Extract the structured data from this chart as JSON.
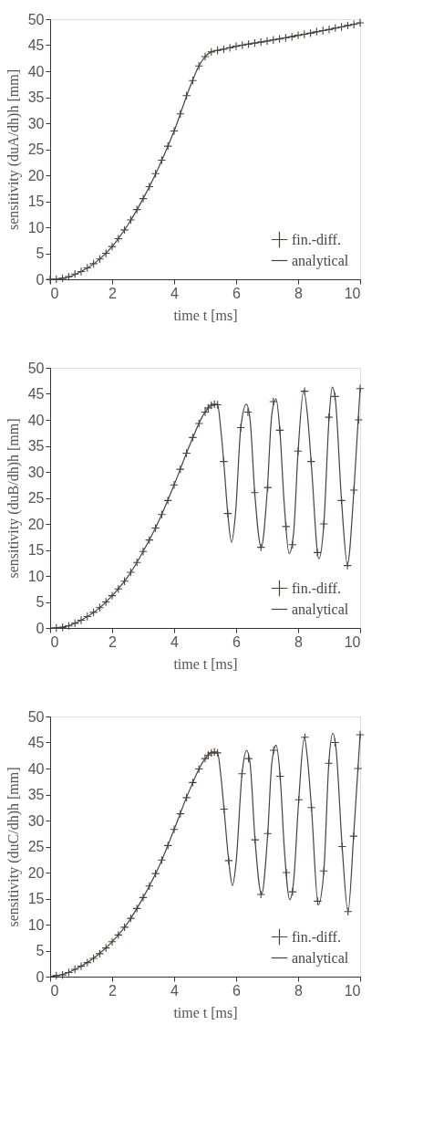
{
  "chart_data": [
    {
      "type": "line",
      "xlabel": "time t [ms]",
      "ylabel": "sensitivity (duA/dh)h [mm]",
      "xlim": [
        0,
        10
      ],
      "ylim": [
        0,
        50
      ],
      "xticks": [
        0,
        2,
        4,
        6,
        8,
        10
      ],
      "yticks": [
        0,
        5,
        10,
        15,
        20,
        25,
        30,
        35,
        40,
        45,
        50
      ],
      "legend": "bottom right",
      "series": [
        {
          "name": "fin.-diff.",
          "type": "scatter",
          "marker": "cross",
          "color": "#4a4040",
          "x": [
            0,
            0.2,
            0.4,
            0.6,
            0.8,
            1,
            1.2,
            1.4,
            1.6,
            1.8,
            2,
            2.2,
            2.4,
            2.6,
            2.8,
            3,
            3.2,
            3.4,
            3.6,
            3.8,
            4,
            4.2,
            4.4,
            4.6,
            4.8,
            5,
            5.2,
            5.4,
            5.6,
            5.8,
            6,
            6.2,
            6.4,
            6.6,
            6.8,
            7,
            7.2,
            7.4,
            7.6,
            7.8,
            8,
            8.2,
            8.4,
            8.6,
            8.8,
            9,
            9.2,
            9.4,
            9.6,
            9.8,
            10
          ],
          "values": [
            0,
            0,
            0.2,
            0.5,
            1,
            1.5,
            2.2,
            3,
            3.9,
            5,
            6.3,
            7.8,
            9.5,
            11.4,
            13.4,
            15.5,
            17.8,
            20.3,
            22.9,
            25.6,
            28.5,
            31.8,
            35.3,
            38.2,
            41,
            42.8,
            43.7,
            44,
            44.2,
            44.5,
            44.8,
            45,
            45.2,
            45.4,
            45.6,
            45.8,
            46,
            46.2,
            46.4,
            46.6,
            46.9,
            47.1,
            47.3,
            47.6,
            47.8,
            48,
            48.3,
            48.5,
            48.8,
            49,
            49.3
          ]
        },
        {
          "name": "analytical",
          "line_style": "solid",
          "color": "#4a4040",
          "x": [
            0,
            0.5,
            1,
            1.5,
            2,
            2.5,
            3,
            3.5,
            4,
            4.5,
            4.8,
            5,
            5.2,
            5.4,
            6,
            7,
            8,
            9,
            10
          ],
          "values": [
            0,
            0.3,
            1.5,
            3.4,
            6.3,
            10.4,
            15.5,
            21.5,
            28.5,
            36.8,
            41,
            42.8,
            43.7,
            44,
            44.8,
            45.8,
            46.9,
            48,
            49.3
          ]
        }
      ]
    },
    {
      "type": "line",
      "xlabel": "time t [ms]",
      "ylabel": "sensitivity (duB/dh)h [mm]",
      "xlim": [
        0,
        10
      ],
      "ylim": [
        0,
        50
      ],
      "xticks": [
        0,
        2,
        4,
        6,
        8,
        10
      ],
      "yticks": [
        0,
        5,
        10,
        15,
        20,
        25,
        30,
        35,
        40,
        45,
        50
      ],
      "legend": "bottom right",
      "series": [
        {
          "name": "fin.-diff.",
          "type": "scatter",
          "marker": "cross",
          "color": "#4a4040",
          "x": [
            0.2,
            0.4,
            0.6,
            0.8,
            1,
            1.2,
            1.4,
            1.6,
            1.8,
            2,
            2.2,
            2.4,
            2.6,
            2.8,
            3,
            3.2,
            3.4,
            3.6,
            3.8,
            4,
            4.2,
            4.4,
            4.6,
            4.8,
            5,
            5.1,
            5.2,
            5.3,
            5.4,
            5.6,
            5.73,
            6.15,
            6.38,
            6.6,
            6.8,
            7.02,
            7.2,
            7.41,
            7.61,
            7.82,
            8.0,
            8.21,
            8.42,
            8.62,
            8.83,
            8.99,
            9.19,
            9.4,
            9.59,
            9.8,
            9.95,
            10
          ],
          "values": [
            0,
            0.1,
            0.4,
            0.9,
            1.5,
            2.2,
            3,
            3.9,
            5,
            6.2,
            7.5,
            9,
            10.7,
            12.6,
            14.7,
            16.9,
            19.2,
            21.8,
            24.5,
            27.5,
            30.5,
            33.6,
            36.6,
            39.3,
            41.5,
            42.3,
            42.8,
            43,
            42.9,
            32,
            22,
            38.5,
            41.5,
            26,
            15.5,
            27,
            43.5,
            38,
            19.5,
            16,
            34,
            45.5,
            32,
            14.5,
            20,
            40.5,
            44.5,
            24.5,
            12,
            26.5,
            40,
            46
          ]
        },
        {
          "name": "analytical",
          "line_style": "solid",
          "color": "#4a4040",
          "x": [
            0,
            0.5,
            1,
            1.5,
            2,
            2.5,
            3,
            3.5,
            4,
            4.5,
            5,
            5.2,
            5.4,
            5.5,
            5.6,
            5.73,
            5.85,
            5.98,
            6.15,
            6.33,
            6.45,
            6.6,
            6.81,
            7.0,
            7.15,
            7.29,
            7.41,
            7.55,
            7.71,
            7.85,
            8.0,
            8.18,
            8.3,
            8.42,
            8.67,
            8.83,
            9.0,
            9.1,
            9.2,
            9.4,
            9.59,
            9.8,
            10
          ],
          "values": [
            0,
            0.3,
            1.5,
            3.4,
            6.2,
            9.8,
            14.7,
            20.5,
            27.5,
            35.1,
            41.5,
            42.8,
            42.9,
            38.5,
            32,
            22,
            16.5,
            22,
            38.5,
            43,
            40,
            26,
            15.5,
            26,
            41,
            44,
            38,
            24,
            14.3,
            18,
            34,
            45.7,
            41,
            32,
            13.3,
            20,
            40.5,
            46.3,
            44,
            24.5,
            12.2,
            26.5,
            46
          ]
        }
      ]
    },
    {
      "type": "line",
      "xlabel": "time t [ms]",
      "ylabel": "sensitivity (duC/dh)h [mm]",
      "xlim": [
        0,
        10
      ],
      "ylim": [
        0,
        50
      ],
      "xticks": [
        0,
        2,
        4,
        6,
        8,
        10
      ],
      "yticks": [
        0,
        5,
        10,
        15,
        20,
        25,
        30,
        35,
        40,
        45,
        50
      ],
      "legend": "bottom right",
      "series": [
        {
          "name": "fin.-diff.",
          "type": "scatter",
          "marker": "cross",
          "color": "#4a4040",
          "x": [
            0.2,
            0.4,
            0.6,
            0.8,
            1,
            1.2,
            1.4,
            1.6,
            1.8,
            2,
            2.2,
            2.4,
            2.6,
            2.8,
            3,
            3.2,
            3.4,
            3.6,
            3.8,
            4,
            4.2,
            4.4,
            4.6,
            4.8,
            5,
            5.1,
            5.2,
            5.3,
            5.4,
            5.61,
            5.76,
            6.19,
            6.4,
            6.61,
            6.8,
            7.02,
            7.21,
            7.42,
            7.62,
            7.82,
            8.02,
            8.22,
            8.43,
            8.63,
            8.83,
            8.99,
            9.19,
            9.42,
            9.61,
            9.79,
            9.93,
            10
          ],
          "values": [
            0.2,
            0.3,
            0.8,
            1.4,
            2,
            2.7,
            3.5,
            4.4,
            5.5,
            6.7,
            8,
            9.5,
            11.2,
            13.1,
            15.2,
            17.4,
            19.8,
            22.4,
            25.2,
            28.3,
            31.3,
            34.4,
            37.3,
            39.9,
            41.9,
            42.6,
            43,
            43.2,
            43,
            32.2,
            22.3,
            39,
            41.9,
            26.3,
            15.8,
            27.5,
            43.5,
            38.5,
            20,
            16.3,
            34,
            46,
            32.5,
            14.5,
            20.3,
            41,
            45,
            25,
            12.5,
            27,
            40,
            46.5
          ]
        },
        {
          "name": "analytical",
          "line_style": "solid",
          "color": "#4a4040",
          "x": [
            0,
            0.5,
            1,
            1.5,
            2,
            2.5,
            3,
            3.5,
            4,
            4.5,
            5,
            5.2,
            5.4,
            5.5,
            5.61,
            5.76,
            5.88,
            6.0,
            6.19,
            6.34,
            6.45,
            6.61,
            6.82,
            7.02,
            7.15,
            7.29,
            7.42,
            7.55,
            7.73,
            7.85,
            8.02,
            8.2,
            8.3,
            8.43,
            8.65,
            8.83,
            8.99,
            9.12,
            9.22,
            9.42,
            9.61,
            9.79,
            10
          ],
          "values": [
            0,
            0.6,
            2,
            4,
            6.7,
            10.3,
            15.2,
            21,
            28.3,
            35.9,
            41.9,
            43,
            43,
            39,
            32.2,
            22.3,
            17.5,
            22,
            39,
            43.5,
            41,
            26.3,
            15.8,
            27.5,
            41,
            44.5,
            38.5,
            25,
            14.8,
            18,
            34,
            46,
            42,
            32.5,
            13.8,
            20.3,
            41,
            46.8,
            44,
            25,
            12.5,
            27,
            46.5
          ]
        }
      ]
    }
  ]
}
